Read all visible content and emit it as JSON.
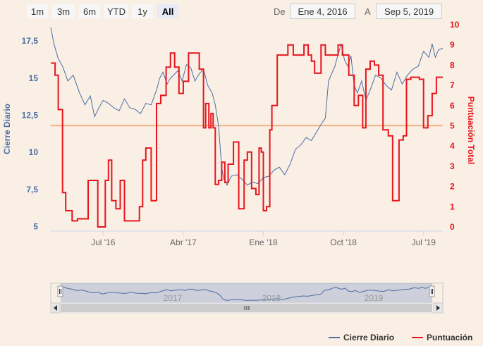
{
  "range_selector": {
    "buttons": [
      "1m",
      "3m",
      "6m",
      "YTD",
      "1y",
      "All"
    ],
    "selected": "All",
    "from_label": "De",
    "from_value": "Ene 4, 2016",
    "to_label": "A",
    "to_value": "Sep 5, 2019"
  },
  "legend": {
    "series1": "Cierre Diario",
    "series2": "Puntuación"
  },
  "navigator": {
    "year_labels": [
      "2017",
      "2018",
      "2019"
    ]
  },
  "colors": {
    "line": "#4a6fa5",
    "score": "#e8141c",
    "plotline": "#f4b183",
    "axis_left": "#4a6fa5",
    "axis_right": "#e8141c"
  },
  "chart_data": {
    "type": "line",
    "title": "",
    "x_tick_labels": [
      "Jul '16",
      "Abr '17",
      "Ene '18",
      "Oct '18",
      "Jul '19"
    ],
    "x_ticks": [
      2016.5,
      2017.25,
      2018.0,
      2018.75,
      2019.5
    ],
    "x_range": [
      2016.01,
      2019.68
    ],
    "y_left": {
      "label": "Cierre Diario",
      "range": [
        4.7,
        18.5
      ],
      "ticks": [
        5,
        7.5,
        10,
        12.5,
        15,
        17.5
      ],
      "tick_labels": [
        "5",
        "7,5",
        "10",
        "12,5",
        "15",
        "17,5"
      ]
    },
    "y_right": {
      "label": "Puntuación Total",
      "range": [
        0,
        10
      ],
      "ticks": [
        0,
        1,
        2,
        3,
        4,
        5,
        6,
        7,
        8,
        9,
        10
      ],
      "tick_labels": [
        "0",
        "1",
        "2",
        "3",
        "4",
        "5",
        "6",
        "7",
        "8",
        "9",
        "10"
      ]
    },
    "reference_line": {
      "axis": "left",
      "value": 11.8
    },
    "series": [
      {
        "name": "Cierre Diario",
        "axis": "left",
        "x": [
          2016.01,
          2016.04,
          2016.08,
          2016.12,
          2016.17,
          2016.22,
          2016.28,
          2016.33,
          2016.38,
          2016.42,
          2016.46,
          2016.5,
          2016.55,
          2016.6,
          2016.65,
          2016.7,
          2016.75,
          2016.8,
          2016.85,
          2016.9,
          2016.95,
          2017.0,
          2017.03,
          2017.06,
          2017.1,
          2017.13,
          2017.16,
          2017.2,
          2017.24,
          2017.28,
          2017.32,
          2017.36,
          2017.4,
          2017.44,
          2017.48,
          2017.52,
          2017.55,
          2017.58,
          2017.61,
          2017.63,
          2017.66,
          2017.7,
          2017.75,
          2017.8,
          2017.85,
          2017.9,
          2017.95,
          2018.0,
          2018.05,
          2018.1,
          2018.15,
          2018.2,
          2018.25,
          2018.3,
          2018.35,
          2018.4,
          2018.45,
          2018.5,
          2018.55,
          2018.58,
          2018.61,
          2018.64,
          2018.67,
          2018.7,
          2018.73,
          2018.76,
          2018.79,
          2018.82,
          2018.85,
          2018.88,
          2018.92,
          2018.96,
          2019.0,
          2019.05,
          2019.1,
          2019.15,
          2019.2,
          2019.25,
          2019.3,
          2019.35,
          2019.4,
          2019.45,
          2019.5,
          2019.55,
          2019.58,
          2019.61,
          2019.64,
          2019.68
        ],
        "values": [
          18.4,
          17.3,
          16.3,
          15.8,
          14.8,
          15.2,
          14.0,
          13.2,
          13.8,
          12.4,
          13.0,
          13.5,
          13.3,
          13.0,
          12.8,
          13.6,
          13.0,
          12.9,
          12.6,
          13.3,
          13.2,
          14.2,
          15.0,
          15.4,
          14.6,
          15.0,
          15.2,
          15.5,
          14.8,
          15.9,
          15.7,
          14.8,
          15.3,
          15.6,
          14.5,
          14.0,
          13.2,
          11.8,
          9.0,
          8.2,
          7.8,
          8.4,
          8.5,
          8.2,
          7.8,
          8.0,
          7.9,
          8.3,
          8.4,
          8.8,
          9.0,
          8.5,
          9.2,
          10.2,
          10.5,
          11.0,
          10.8,
          11.4,
          12.0,
          12.3,
          14.8,
          15.3,
          15.8,
          16.6,
          17.3,
          16.2,
          15.8,
          16.5,
          14.5,
          14.0,
          14.8,
          13.5,
          14.2,
          15.2,
          15.0,
          14.5,
          14.2,
          15.4,
          14.6,
          15.2,
          15.6,
          15.8,
          16.8,
          16.4,
          17.3,
          16.4,
          16.9,
          17.0
        ]
      },
      {
        "name": "Puntuación",
        "axis": "right",
        "step": true,
        "x": [
          2016.01,
          2016.05,
          2016.08,
          2016.12,
          2016.15,
          2016.21,
          2016.26,
          2016.36,
          2016.45,
          2016.52,
          2016.55,
          2016.58,
          2016.62,
          2016.66,
          2016.7,
          2016.74,
          2016.8,
          2016.84,
          2016.87,
          2016.9,
          2016.95,
          2017.0,
          2017.04,
          2017.09,
          2017.13,
          2017.17,
          2017.21,
          2017.25,
          2017.3,
          2017.35,
          2017.4,
          2017.44,
          2017.46,
          2017.49,
          2017.51,
          2017.53,
          2017.55,
          2017.58,
          2017.61,
          2017.64,
          2017.67,
          2017.72,
          2017.77,
          2017.82,
          2017.85,
          2017.89,
          2017.93,
          2017.96,
          2017.98,
          2018.0,
          2018.03,
          2018.06,
          2018.08,
          2018.13,
          2018.18,
          2018.23,
          2018.28,
          2018.33,
          2018.38,
          2018.42,
          2018.45,
          2018.48,
          2018.54,
          2018.58,
          2018.63,
          2018.7,
          2018.74,
          2018.8,
          2018.85,
          2018.89,
          2018.93,
          2018.96,
          2019.0,
          2019.04,
          2019.08,
          2019.12,
          2019.17,
          2019.21,
          2019.27,
          2019.31,
          2019.34,
          2019.38,
          2019.42,
          2019.46,
          2019.5,
          2019.54,
          2019.58,
          2019.62,
          2019.66
        ],
        "values": [
          8.1,
          7.5,
          5.8,
          1.7,
          0.8,
          0.3,
          0.4,
          2.3,
          0.0,
          2.3,
          3.3,
          1.3,
          0.9,
          2.3,
          0.3,
          0.3,
          0.3,
          1.0,
          3.3,
          3.9,
          1.3,
          6.1,
          6.5,
          7.9,
          8.6,
          7.9,
          6.6,
          7.2,
          8.6,
          8.6,
          7.8,
          4.9,
          6.1,
          4.9,
          5.6,
          4.9,
          2.1,
          2.3,
          3.2,
          2.2,
          3.1,
          4.2,
          0.9,
          3.3,
          3.7,
          1.9,
          1.6,
          3.9,
          3.7,
          0.8,
          1.0,
          4.8,
          6.0,
          8.5,
          8.5,
          9.0,
          8.5,
          8.5,
          9.0,
          8.5,
          8.2,
          7.6,
          9.0,
          8.5,
          8.5,
          9.0,
          8.5,
          7.5,
          6.0,
          6.5,
          4.9,
          7.8,
          8.2,
          8.0,
          7.5,
          4.8,
          4.5,
          1.3,
          4.3,
          4.5,
          7.3,
          7.4,
          7.4,
          7.3,
          4.9,
          5.5,
          6.6,
          7.4,
          7.4
        ]
      }
    ]
  }
}
